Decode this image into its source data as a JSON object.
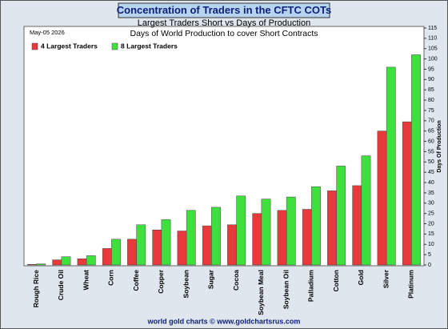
{
  "chart_data": {
    "type": "bar",
    "title": "Concentration of Traders in the CFTC COTs",
    "subtitle": "Largest Traders Short vs Days of Production",
    "subtitle2": "Days of World Production to cover Short Contracts",
    "date": "May-05  2026",
    "y_label": "Days Of Production",
    "footer": "world gold charts © www.goldchartsrus.com",
    "categories": [
      "Rough Rice",
      "Crude Oil",
      "Wheat",
      "Corn",
      "Coffee",
      "Copper",
      "Soybean",
      "Sugar",
      "Cocoa",
      "Soybean Meal",
      "Soybean Oil",
      "Palladium",
      "Cotton",
      "Gold",
      "Silver",
      "Platinum"
    ],
    "series": [
      {
        "name": "4 Largest Traders",
        "color": "#e83a3a",
        "values": [
          0.3,
          2.5,
          3,
          8,
          12.5,
          17,
          16.5,
          19,
          19.5,
          25,
          26.5,
          27,
          36,
          38.5,
          65,
          69.5
        ]
      },
      {
        "name": "8 Largest Traders",
        "color": "#3ee03e",
        "values": [
          0.5,
          4,
          4.5,
          12.5,
          19.5,
          22,
          26.5,
          28,
          33.5,
          32,
          33,
          38,
          48,
          53,
          96,
          102
        ]
      }
    ],
    "ylim": [
      0,
      115
    ],
    "yticks": [
      0,
      5,
      10,
      15,
      20,
      25,
      30,
      35,
      40,
      45,
      50,
      55,
      60,
      65,
      70,
      75,
      80,
      85,
      90,
      95,
      100,
      105,
      110,
      115
    ],
    "legend": "top-left"
  }
}
